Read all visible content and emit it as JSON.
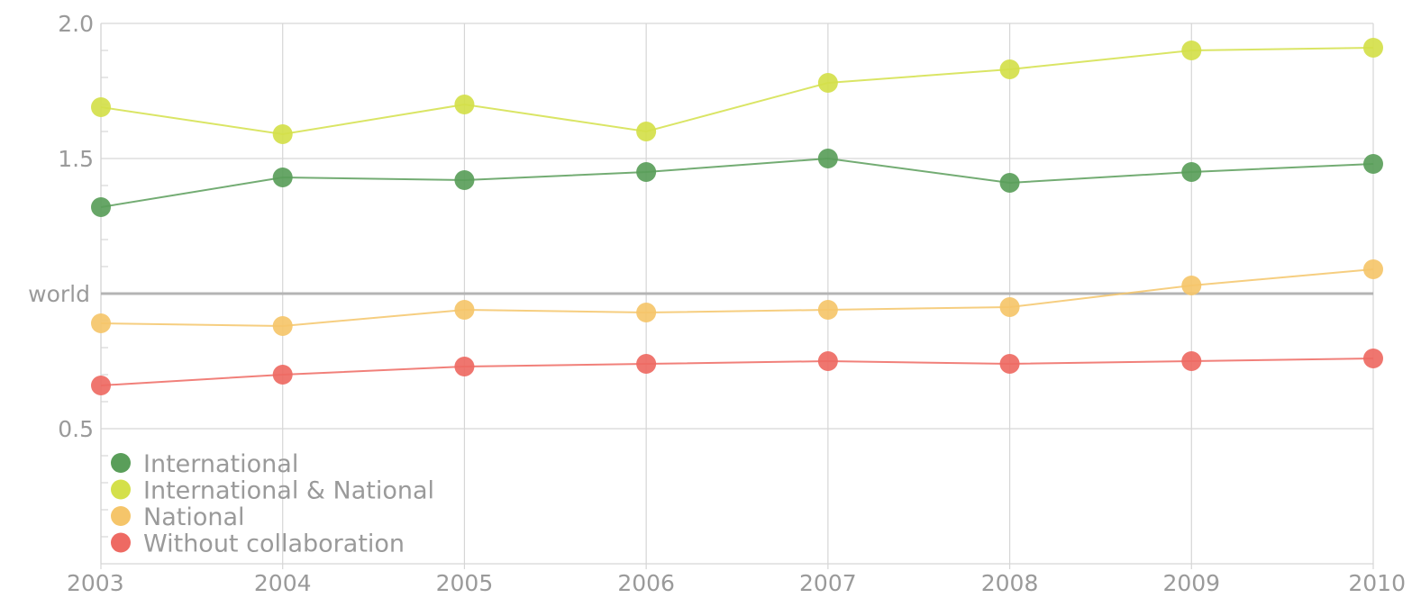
{
  "chart_data": {
    "type": "line",
    "title": "",
    "xlabel": "",
    "ylabel": "",
    "x": [
      "2003",
      "2004",
      "2005",
      "2006",
      "2007",
      "2008",
      "2009",
      "2010"
    ],
    "ylim": [
      0.0,
      2.0
    ],
    "y_ticks": [
      {
        "value": 2.0,
        "label": "2.0"
      },
      {
        "value": 1.5,
        "label": "1.5"
      },
      {
        "value": 0.5,
        "label": "0.5"
      }
    ],
    "reference_line": {
      "value": 1.0,
      "label": "world"
    },
    "grid": true,
    "legend_position": "bottom-left",
    "series": [
      {
        "name": "International",
        "color": "#5a9e5a",
        "values": [
          1.32,
          1.43,
          1.42,
          1.45,
          1.5,
          1.41,
          1.45,
          1.48
        ]
      },
      {
        "name": "International & National",
        "color": "#d4e04a",
        "values": [
          1.69,
          1.59,
          1.7,
          1.6,
          1.78,
          1.83,
          1.9,
          1.91
        ]
      },
      {
        "name": "National",
        "color": "#f5c56a",
        "values": [
          0.89,
          0.88,
          0.94,
          0.93,
          0.94,
          0.95,
          1.03,
          1.09
        ]
      },
      {
        "name": "Without collaboration",
        "color": "#ee6a63",
        "values": [
          0.66,
          0.7,
          0.73,
          0.74,
          0.75,
          0.74,
          0.75,
          0.76
        ]
      }
    ]
  }
}
